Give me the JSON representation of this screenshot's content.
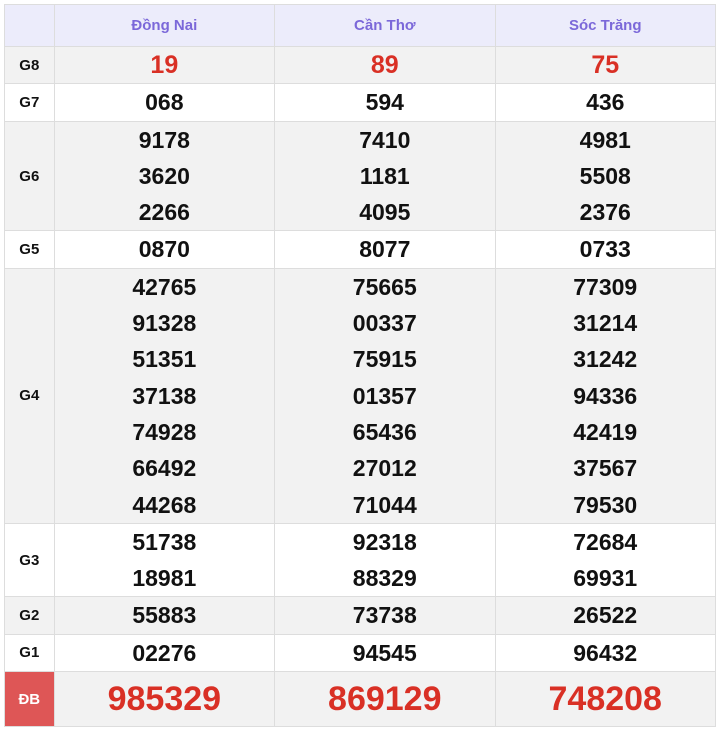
{
  "provinces": [
    "Đồng Nai",
    "Cần Thơ",
    "Sóc Trăng"
  ],
  "colors": {
    "header_text": "#7b68d9",
    "special": "#d93025",
    "db_label_bg": "#de5656"
  },
  "rows": [
    {
      "label": "G8",
      "values": [
        [
          "19"
        ],
        [
          "89"
        ],
        [
          "75"
        ]
      ],
      "style": "red",
      "bg": "g"
    },
    {
      "label": "G7",
      "values": [
        [
          "068"
        ],
        [
          "594"
        ],
        [
          "436"
        ]
      ],
      "bg": "w"
    },
    {
      "label": "G6",
      "values": [
        [
          "9178",
          "3620",
          "2266"
        ],
        [
          "7410",
          "1181",
          "4095"
        ],
        [
          "4981",
          "5508",
          "2376"
        ]
      ],
      "bg": "g"
    },
    {
      "label": "G5",
      "values": [
        [
          "0870"
        ],
        [
          "8077"
        ],
        [
          "0733"
        ]
      ],
      "bg": "w"
    },
    {
      "label": "G4",
      "values": [
        [
          "42765",
          "91328",
          "51351",
          "37138",
          "74928",
          "66492",
          "44268"
        ],
        [
          "75665",
          "00337",
          "75915",
          "01357",
          "65436",
          "27012",
          "71044"
        ],
        [
          "77309",
          "31214",
          "31242",
          "94336",
          "42419",
          "37567",
          "79530"
        ]
      ],
      "bg": "g"
    },
    {
      "label": "G3",
      "values": [
        [
          "51738",
          "18981"
        ],
        [
          "92318",
          "88329"
        ],
        [
          "72684",
          "69931"
        ]
      ],
      "bg": "w"
    },
    {
      "label": "G2",
      "values": [
        [
          "55883"
        ],
        [
          "73738"
        ],
        [
          "26522"
        ]
      ],
      "bg": "g"
    },
    {
      "label": "G1",
      "values": [
        [
          "02276"
        ],
        [
          "94545"
        ],
        [
          "96432"
        ]
      ],
      "bg": "w"
    },
    {
      "label": "ĐB",
      "values": [
        [
          "985329"
        ],
        [
          "869129"
        ],
        [
          "748208"
        ]
      ],
      "style": "db",
      "bg": "g"
    }
  ]
}
